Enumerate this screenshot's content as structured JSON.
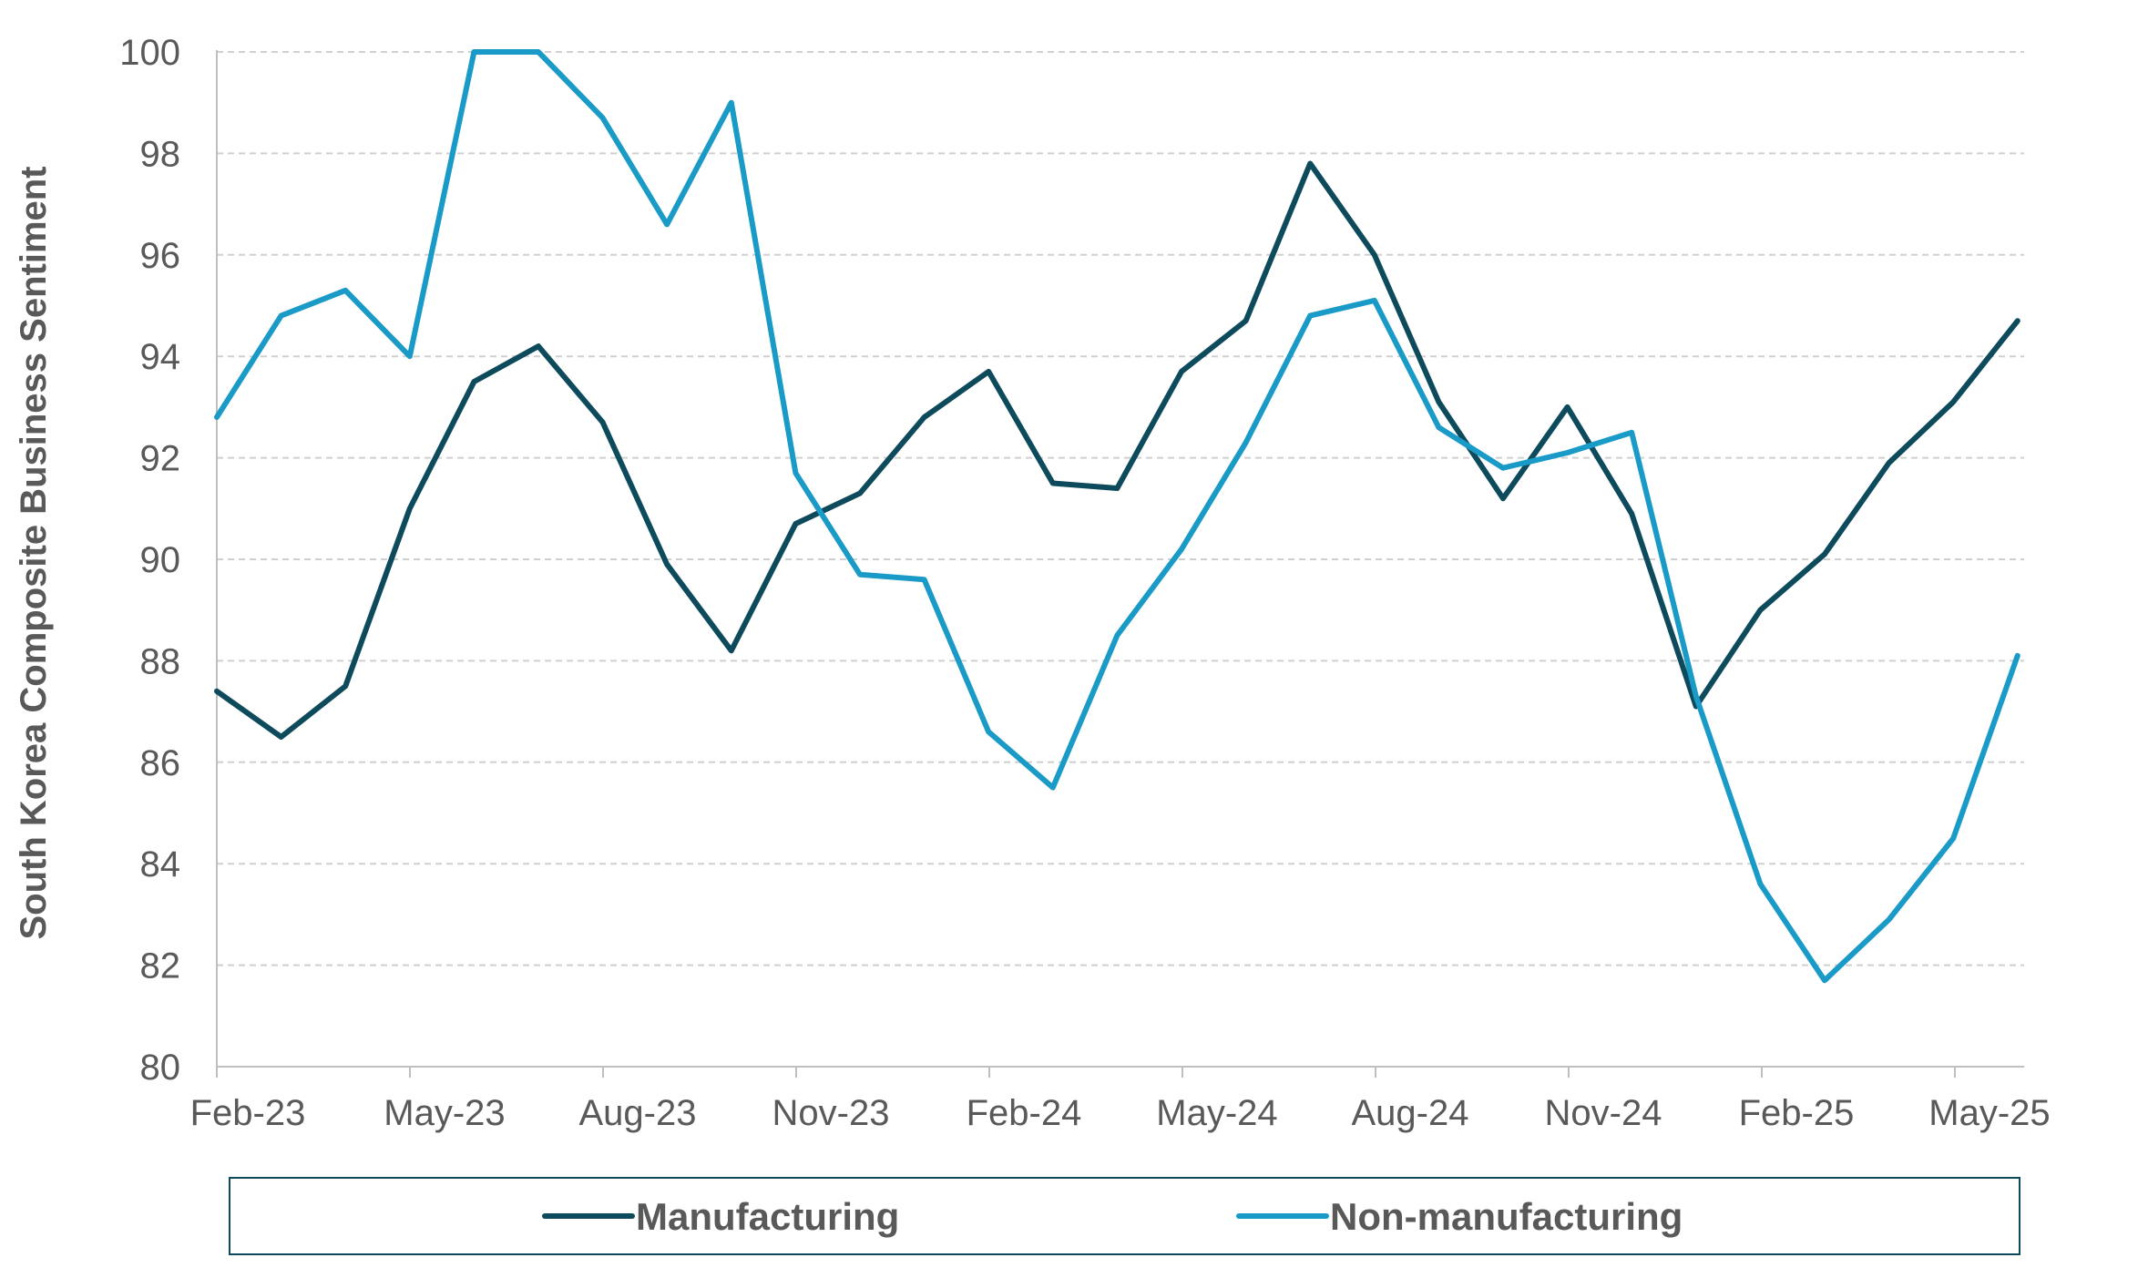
{
  "chart_data": {
    "type": "line",
    "title": "",
    "xlabel": "",
    "ylabel": "South Korea Composite Business Sentiment",
    "ylim": [
      80,
      100
    ],
    "yticks": [
      80,
      82,
      84,
      86,
      88,
      90,
      92,
      94,
      96,
      98,
      100
    ],
    "xtick_labels": [
      "Feb-23",
      "May-23",
      "Aug-23",
      "Nov-23",
      "Feb-24",
      "May-24",
      "Aug-24",
      "Nov-24",
      "Feb-25",
      "May-25"
    ],
    "x": [
      "Jan-23",
      "Feb-23",
      "Mar-23",
      "Apr-23",
      "May-23",
      "Jun-23",
      "Jul-23",
      "Aug-23",
      "Sep-23",
      "Oct-23",
      "Nov-23",
      "Dec-23",
      "Jan-24",
      "Feb-24",
      "Mar-24",
      "Apr-24",
      "May-24",
      "Jun-24",
      "Jul-24",
      "Aug-24",
      "Sep-24",
      "Oct-24",
      "Nov-24",
      "Dec-24",
      "Jan-25",
      "Feb-25",
      "Mar-25",
      "Apr-25",
      "May-25"
    ],
    "grid": true,
    "legend": "bottom",
    "series": [
      {
        "name": "Manufacturing",
        "color": "#0d4a5c",
        "values": [
          87.4,
          86.5,
          87.5,
          91.0,
          93.5,
          94.2,
          92.7,
          89.9,
          88.2,
          90.7,
          91.3,
          92.8,
          93.7,
          91.5,
          91.4,
          93.7,
          94.7,
          97.8,
          96.0,
          93.1,
          91.2,
          93.0,
          90.9,
          87.1,
          89.0,
          90.1,
          91.9,
          93.1,
          94.7
        ]
      },
      {
        "name": "Non-manufacturing",
        "color": "#1a9ac6",
        "values": [
          92.8,
          94.8,
          95.3,
          94.0,
          100.0,
          100.0,
          98.7,
          96.6,
          99.0,
          91.7,
          89.7,
          89.6,
          86.6,
          85.5,
          88.5,
          90.2,
          92.3,
          94.8,
          95.1,
          92.6,
          91.8,
          92.1,
          92.5,
          87.3,
          83.6,
          81.7,
          82.9,
          84.5,
          88.1
        ]
      }
    ]
  }
}
